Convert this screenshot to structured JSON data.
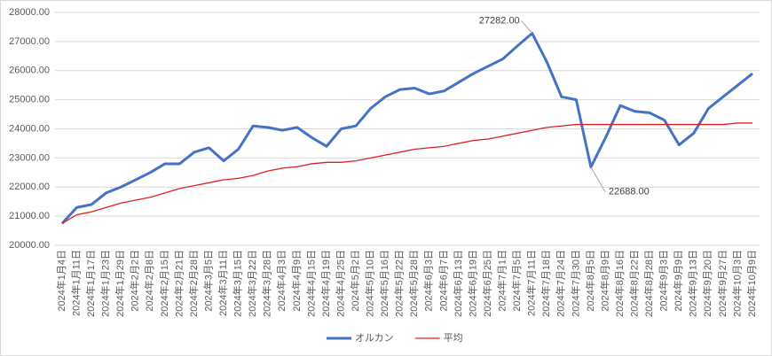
{
  "chart_data": {
    "type": "line",
    "categories": [
      "2024年1月4日",
      "2024年1月11日",
      "2024年1月17日",
      "2024年1月23日",
      "2024年1月29日",
      "2024年2月2日",
      "2024年2月8日",
      "2024年2月15日",
      "2024年2月21日",
      "2024年2月28日",
      "2024年3月5日",
      "2024年3月11日",
      "2024年3月15日",
      "2024年3月22日",
      "2024年3月28日",
      "2024年4月3日",
      "2024年4月9日",
      "2024年4月15日",
      "2024年4月19日",
      "2024年4月25日",
      "2024年5月2日",
      "2024年5月10日",
      "2024年5月16日",
      "2024年5月22日",
      "2024年5月28日",
      "2024年6月3日",
      "2024年6月7日",
      "2024年6月13日",
      "2024年6月19日",
      "2024年6月25日",
      "2024年7月1日",
      "2024年7月5日",
      "2024年7月11日",
      "2024年7月18日",
      "2024年7月24日",
      "2024年7月30日",
      "2024年8月5日",
      "2024年8月9日",
      "2024年8月16日",
      "2024年8月22日",
      "2024年8月28日",
      "2024年9月3日",
      "2024年9月9日",
      "2024年9月13日",
      "2024年9月20日",
      "2024年9月27日",
      "2024年10月3日",
      "2024年10月9日"
    ],
    "series": [
      {
        "name": "オルカン",
        "color": "#4472c4",
        "width": 3,
        "values": [
          20750,
          21300,
          21400,
          21800,
          22000,
          22250,
          22500,
          22800,
          22800,
          23200,
          23350,
          22900,
          23300,
          24100,
          24050,
          23950,
          24050,
          23700,
          23400,
          24000,
          24100,
          24700,
          25100,
          25350,
          25400,
          25200,
          25300,
          25600,
          25900,
          26150,
          26400,
          26850,
          27282,
          26300,
          25100,
          25000,
          22688,
          23700,
          24800,
          24600,
          24550,
          24300,
          23450,
          23850,
          24700,
          25100,
          25500,
          25900
        ],
        "value_labels": [
          null,
          null,
          null,
          null,
          null,
          null,
          null,
          null,
          null,
          null,
          null,
          null,
          null,
          null,
          null,
          null,
          null,
          null,
          null,
          null,
          null,
          null,
          null,
          null,
          null,
          null,
          null,
          null,
          null,
          null,
          null,
          null,
          "27282.00",
          null,
          null,
          null,
          "22688.00",
          null,
          null,
          null,
          null,
          null,
          null,
          null,
          null,
          null,
          null,
          null
        ]
      },
      {
        "name": "平均",
        "color": "#e02020",
        "width": 1.3,
        "values": [
          20750,
          21050,
          21150,
          21300,
          21450,
          21550,
          21650,
          21800,
          21950,
          22050,
          22150,
          22250,
          22300,
          22400,
          22550,
          22650,
          22700,
          22800,
          22850,
          22850,
          22900,
          23000,
          23100,
          23200,
          23300,
          23350,
          23400,
          23500,
          23600,
          23650,
          23750,
          23850,
          23950,
          24050,
          24100,
          24150,
          24150,
          24150,
          24150,
          24150,
          24150,
          24150,
          24150,
          24150,
          24150,
          24150,
          24200,
          24200
        ]
      }
    ],
    "ylim": [
      20000,
      28000
    ],
    "yticks": [
      {
        "value": 20000,
        "label": "20000.00"
      },
      {
        "value": 21000,
        "label": "21000.00"
      },
      {
        "value": 22000,
        "label": "22000.00"
      },
      {
        "value": 23000,
        "label": "23000.00"
      },
      {
        "value": 24000,
        "label": "24000.00"
      },
      {
        "value": 25000,
        "label": "25000.00"
      },
      {
        "value": 26000,
        "label": "26000.00"
      },
      {
        "value": 27000,
        "label": "27000.00"
      },
      {
        "value": 28000,
        "label": "28000.00"
      }
    ],
    "grid": true,
    "legend": "bottom"
  }
}
